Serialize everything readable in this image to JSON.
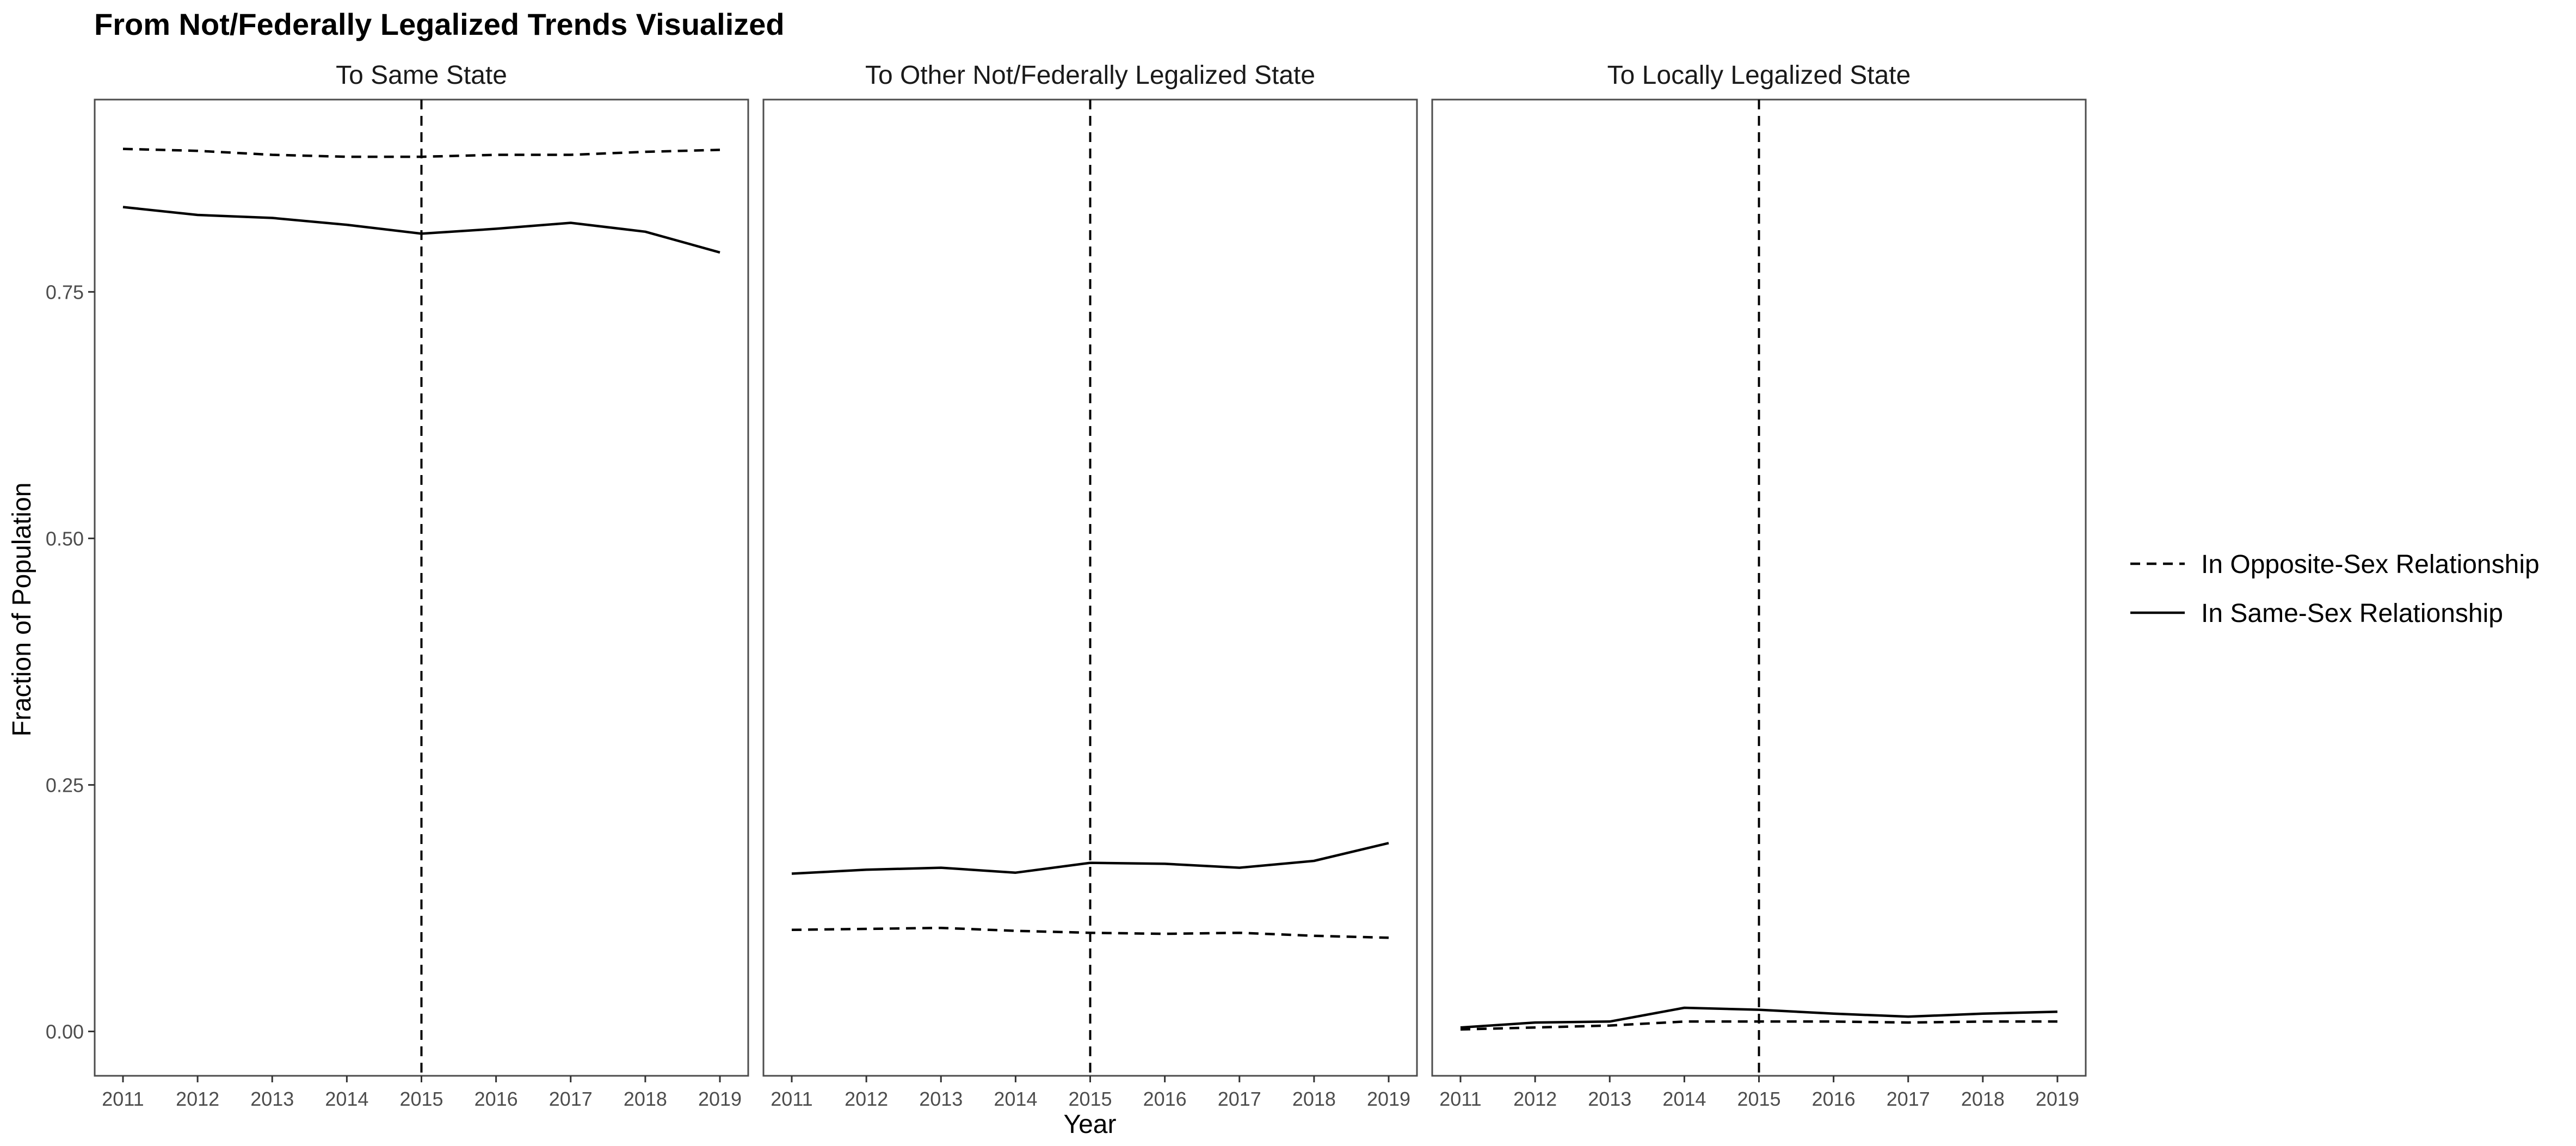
{
  "chart_data": {
    "type": "line",
    "title": "From Not/Federally Legalized Trends Visualized",
    "xlabel": "Year",
    "ylabel": "Fraction of Population",
    "x": [
      2011,
      2012,
      2013,
      2014,
      2015,
      2016,
      2017,
      2018,
      2019
    ],
    "ylim": [
      -0.045,
      0.945
    ],
    "yticks": [
      0.0,
      0.25,
      0.5,
      0.75
    ],
    "ytick_labels": [
      "0.00",
      "0.25",
      "0.50",
      "0.75"
    ],
    "vline_x": 2015,
    "grid": false,
    "legend_position": "right",
    "series_styles": [
      {
        "name": "In Opposite-Sex Relationship",
        "linestyle": "dashed",
        "color": "#000000"
      },
      {
        "name": "In Same-Sex Relationship",
        "linestyle": "solid",
        "color": "#000000"
      }
    ],
    "panels": [
      {
        "title": "To Same State",
        "series": [
          {
            "name": "In Opposite-Sex Relationship",
            "values": [
              0.895,
              0.893,
              0.889,
              0.887,
              0.887,
              0.889,
              0.889,
              0.892,
              0.894
            ]
          },
          {
            "name": "In Same-Sex Relationship",
            "values": [
              0.836,
              0.828,
              0.825,
              0.818,
              0.809,
              0.814,
              0.82,
              0.811,
              0.79
            ]
          }
        ]
      },
      {
        "title": "To Other Not/Federally Legalized State",
        "series": [
          {
            "name": "In Opposite-Sex Relationship",
            "values": [
              0.103,
              0.104,
              0.105,
              0.102,
              0.1,
              0.099,
              0.1,
              0.097,
              0.095
            ]
          },
          {
            "name": "In Same-Sex Relationship",
            "values": [
              0.16,
              0.164,
              0.166,
              0.161,
              0.171,
              0.17,
              0.166,
              0.173,
              0.191
            ]
          }
        ]
      },
      {
        "title": "To Locally Legalized State",
        "series": [
          {
            "name": "In Opposite-Sex Relationship",
            "values": [
              0.002,
              0.004,
              0.006,
              0.01,
              0.01,
              0.01,
              0.009,
              0.01,
              0.01
            ]
          },
          {
            "name": "In Same-Sex Relationship",
            "values": [
              0.004,
              0.009,
              0.01,
              0.024,
              0.022,
              0.018,
              0.015,
              0.018,
              0.02
            ]
          }
        ]
      }
    ]
  }
}
